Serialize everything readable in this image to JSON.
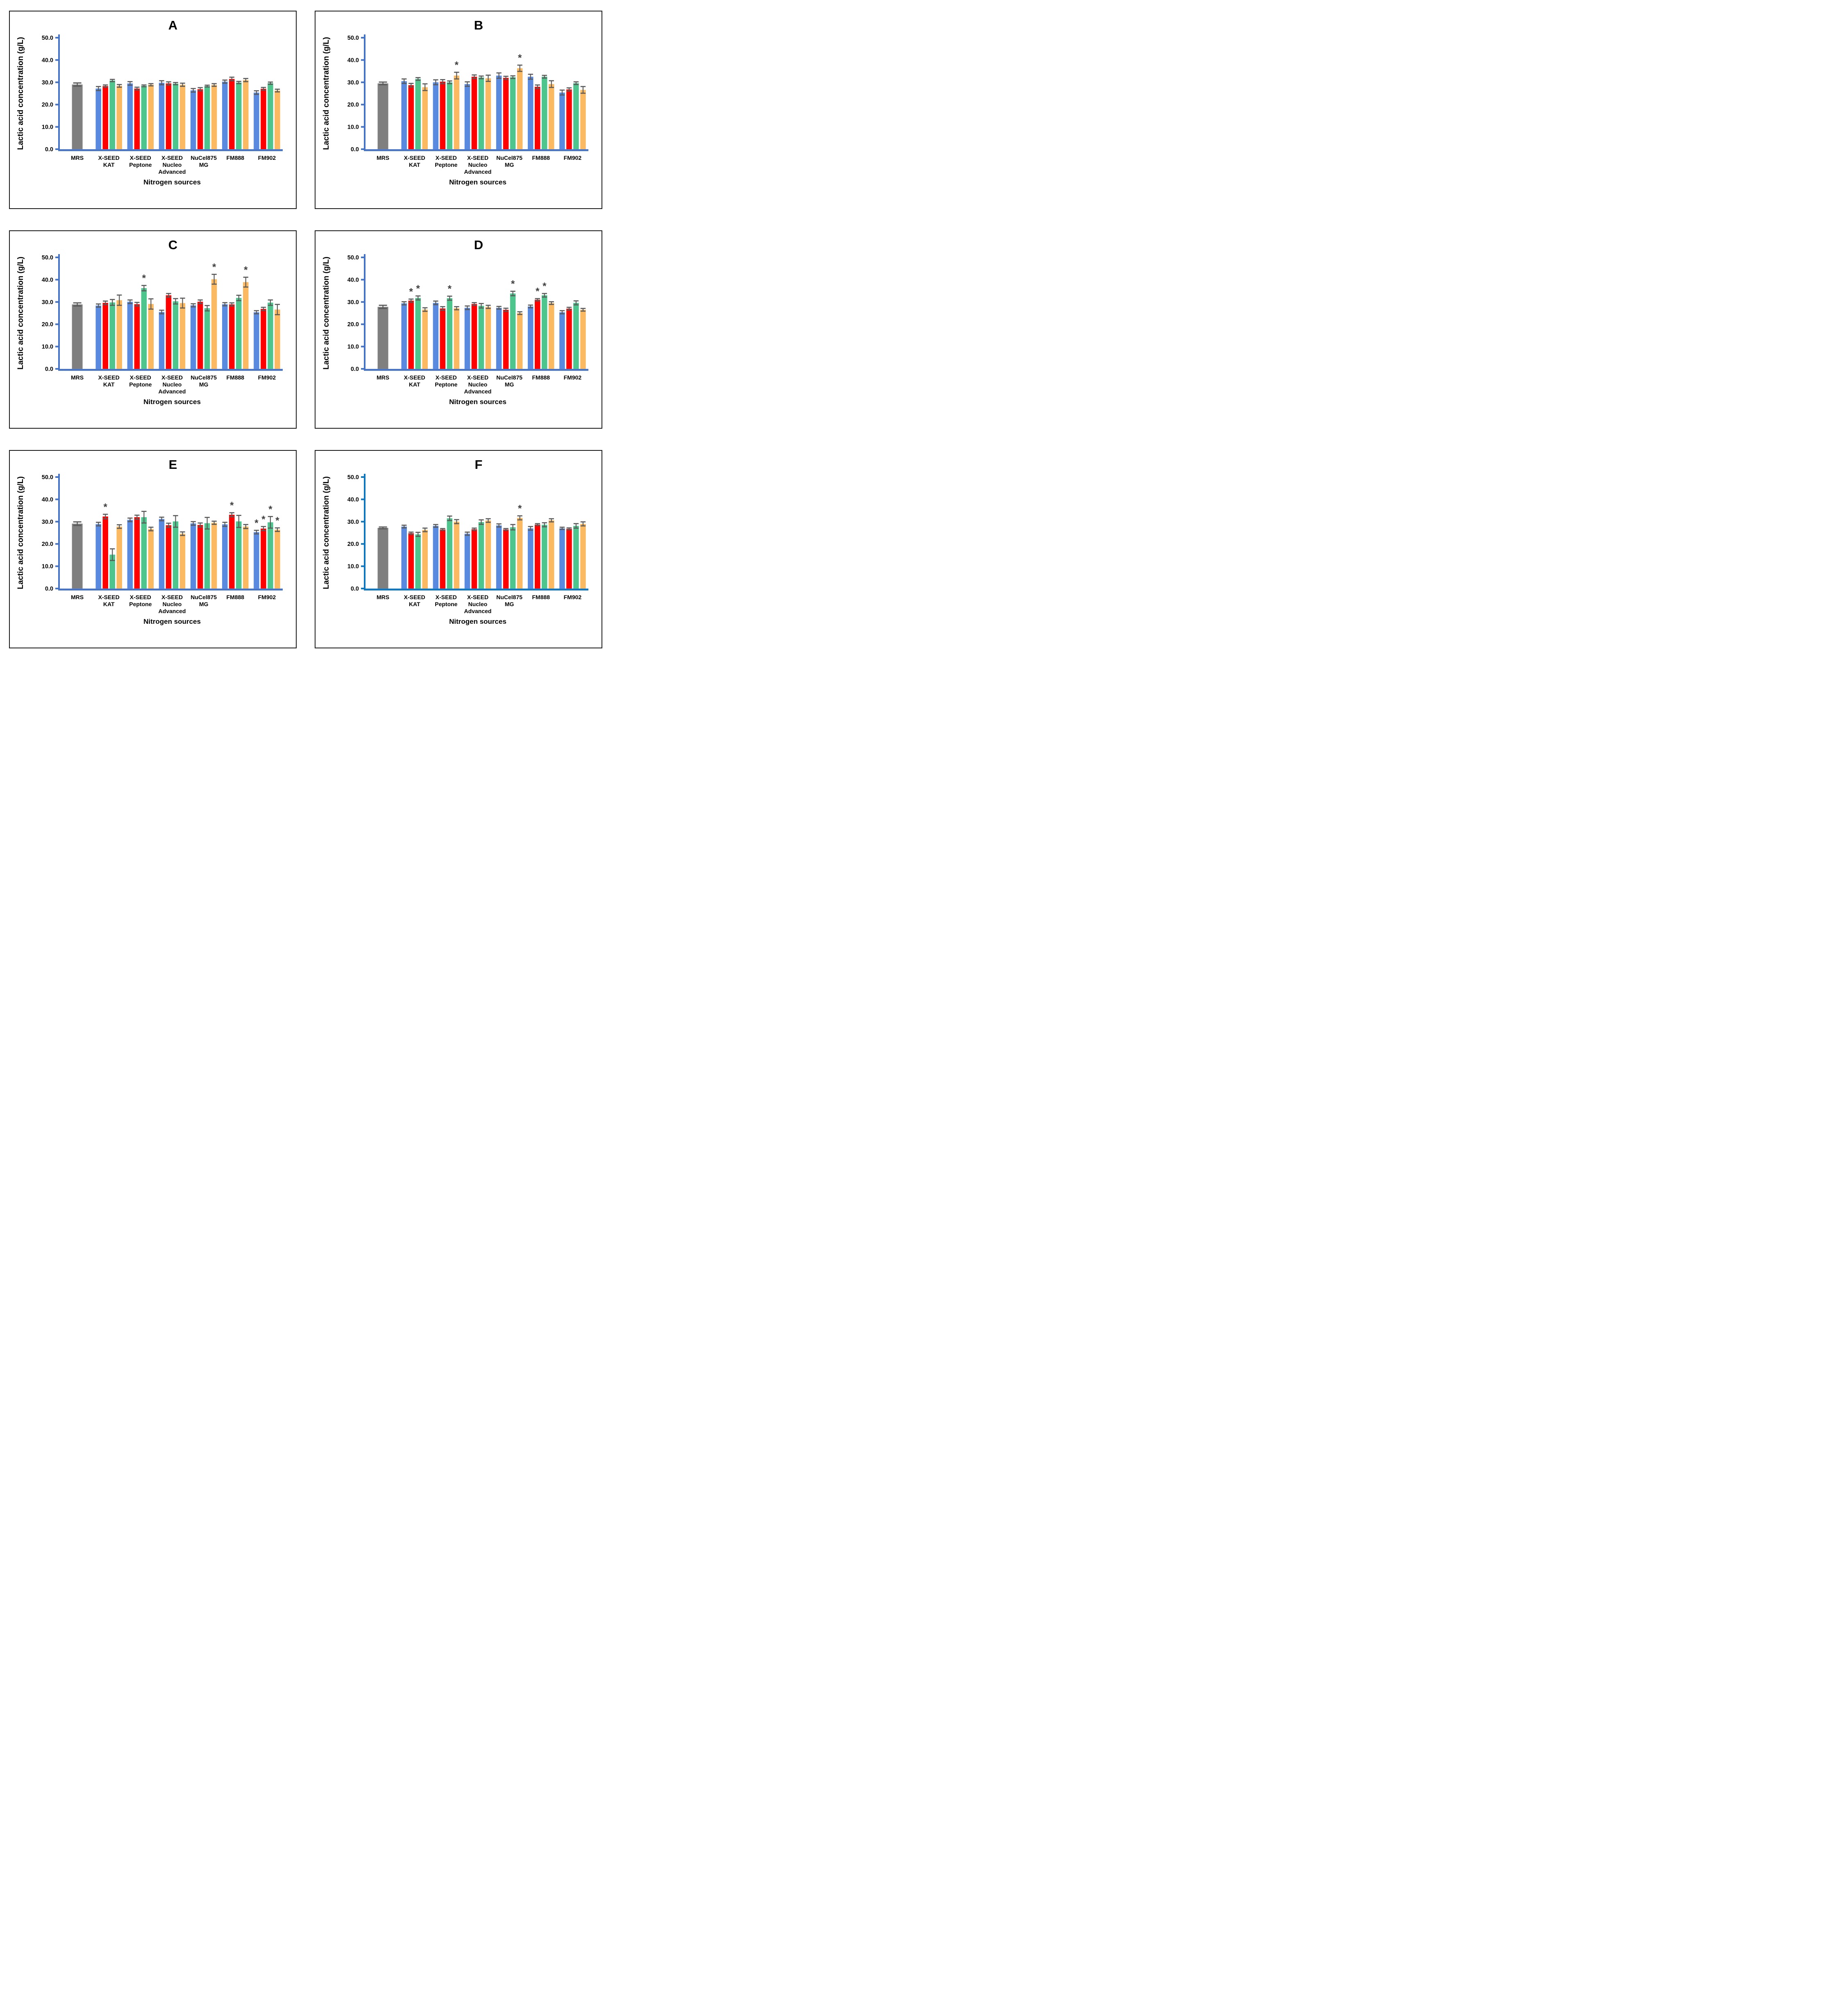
{
  "figure": {
    "ylabel": "Lactic acid concentration  (g/L)",
    "xlabel": "Nitrogen sources",
    "ylim": [
      0,
      50
    ],
    "yticks": [
      0,
      10,
      20,
      30,
      40,
      50
    ],
    "ytick_labels": [
      "0.0",
      "10.0",
      "20.0",
      "30.0",
      "40.0",
      "50.0"
    ],
    "categories": [
      [
        "MRS"
      ],
      [
        "X-SEED",
        "KAT"
      ],
      [
        "X-SEED",
        "Peptone"
      ],
      [
        "X-SEED",
        "Nucleo",
        "Advanced"
      ],
      [
        "NuCel875",
        "MG"
      ],
      [
        "FM888"
      ],
      [
        "FM902"
      ]
    ],
    "grid": "off",
    "legend": "none",
    "colors": {
      "control_bar": "#7F7F7F",
      "series": [
        "#5A8AE0",
        "#FF0000",
        "#4EC58C",
        "#FBB961"
      ],
      "series_names": [
        "blue-bar",
        "red-bar",
        "green-bar",
        "orange-bar"
      ],
      "error_bar": "#595959",
      "asterisk": "#404040",
      "text": "#000000"
    },
    "significance_symbol": "*"
  },
  "chart_data": [
    {
      "panel": "A",
      "type": "bar",
      "axis_color": "#4472C4",
      "mrs": {
        "value": 29.0,
        "error": 0.7
      },
      "groups": [
        {
          "category": "X-SEED KAT",
          "values": [
            27.2,
            28.3,
            30.8,
            28.4
          ],
          "errors": [
            0.9,
            0.5,
            0.5,
            0.6
          ],
          "marks": []
        },
        {
          "category": "X-SEED Peptone",
          "values": [
            29.5,
            27.2,
            28.4,
            28.9
          ],
          "errors": [
            0.8,
            0.6,
            0.4,
            0.5
          ],
          "marks": []
        },
        {
          "category": "X-SEED Nucleo Advanced",
          "values": [
            29.8,
            29.5,
            29.4,
            28.9
          ],
          "errors": [
            0.9,
            0.7,
            0.5,
            0.7
          ],
          "marks": []
        },
        {
          "category": "NuCel875 MG",
          "values": [
            26.4,
            26.9,
            28.3,
            28.8
          ],
          "errors": [
            0.8,
            0.7,
            0.4,
            0.6
          ],
          "marks": []
        },
        {
          "category": "FM888",
          "values": [
            30.3,
            31.5,
            29.9,
            31.0
          ],
          "errors": [
            0.7,
            0.8,
            0.5,
            0.7
          ],
          "marks": []
        },
        {
          "category": "FM902",
          "values": [
            25.4,
            27.1,
            29.6,
            26.3
          ],
          "errors": [
            0.8,
            0.6,
            0.5,
            0.6
          ],
          "marks": []
        }
      ]
    },
    {
      "panel": "B",
      "type": "bar",
      "axis_color": "#4472C4",
      "mrs": {
        "value": 29.5,
        "error": 0.6
      },
      "groups": [
        {
          "category": "X-SEED KAT",
          "values": [
            30.5,
            28.7,
            31.5,
            27.8
          ],
          "errors": [
            1.0,
            0.8,
            0.6,
            1.5
          ],
          "marks": []
        },
        {
          "category": "X-SEED Peptone",
          "values": [
            30.0,
            30.3,
            30.0,
            33.0
          ],
          "errors": [
            1.1,
            0.9,
            0.6,
            1.5
          ],
          "marks": [
            3
          ]
        },
        {
          "category": "X-SEED Nucleo Advanced",
          "values": [
            29.2,
            32.5,
            32.2,
            31.8
          ],
          "errors": [
            1.0,
            0.8,
            0.6,
            1.4
          ],
          "marks": []
        },
        {
          "category": "NuCel875 MG",
          "values": [
            33.0,
            32.0,
            32.3,
            36.3
          ],
          "errors": [
            1.2,
            0.7,
            0.6,
            1.4
          ],
          "marks": [
            3
          ]
        },
        {
          "category": "FM888",
          "values": [
            32.5,
            28.0,
            32.5,
            29.2
          ],
          "errors": [
            1.1,
            0.8,
            0.6,
            1.5
          ],
          "marks": []
        },
        {
          "category": "FM902",
          "values": [
            25.4,
            26.8,
            29.6,
            26.6
          ],
          "errors": [
            1.1,
            0.7,
            0.6,
            1.5
          ],
          "marks": []
        }
      ]
    },
    {
      "panel": "C",
      "type": "bar",
      "axis_color": "#4472C4",
      "mrs": {
        "value": 28.9,
        "error": 0.7
      },
      "groups": [
        {
          "category": "X-SEED KAT",
          "values": [
            28.4,
            29.6,
            29.8,
            30.8
          ],
          "errors": [
            0.7,
            0.8,
            1.3,
            2.3
          ],
          "marks": []
        },
        {
          "category": "X-SEED Peptone",
          "values": [
            30.1,
            29.0,
            36.2,
            29.1
          ],
          "errors": [
            0.8,
            0.8,
            1.2,
            2.3
          ],
          "marks": [
            2
          ]
        },
        {
          "category": "X-SEED Nucleo Advanced",
          "values": [
            25.5,
            33.0,
            30.3,
            29.5
          ],
          "errors": [
            0.8,
            0.8,
            1.2,
            2.2
          ],
          "marks": []
        },
        {
          "category": "NuCel875 MG",
          "values": [
            28.5,
            30.1,
            27.2,
            40.2
          ],
          "errors": [
            0.7,
            0.8,
            1.2,
            2.2
          ],
          "marks": [
            3
          ]
        },
        {
          "category": "FM888",
          "values": [
            29.0,
            28.9,
            31.8,
            38.9
          ],
          "errors": [
            0.7,
            0.7,
            1.2,
            2.2
          ],
          "marks": [
            3
          ]
        },
        {
          "category": "FM902",
          "values": [
            25.4,
            26.9,
            29.7,
            26.6
          ],
          "errors": [
            0.7,
            0.7,
            1.2,
            2.3
          ],
          "marks": []
        }
      ]
    },
    {
      "panel": "D",
      "type": "bar",
      "axis_color": "#4472C4",
      "mrs": {
        "value": 27.8,
        "error": 0.7
      },
      "groups": [
        {
          "category": "X-SEED KAT",
          "values": [
            29.4,
            30.6,
            31.8,
            26.6
          ],
          "errors": [
            0.7,
            0.7,
            0.9,
            0.8
          ],
          "marks": [
            1,
            2
          ]
        },
        {
          "category": "X-SEED Peptone",
          "values": [
            29.6,
            27.1,
            31.7,
            27.2
          ],
          "errors": [
            0.8,
            0.8,
            0.9,
            0.7
          ],
          "marks": [
            2
          ]
        },
        {
          "category": "X-SEED Nucleo Advanced",
          "values": [
            27.4,
            29.1,
            28.3,
            27.8
          ],
          "errors": [
            0.8,
            0.6,
            1.0,
            0.7
          ],
          "marks": []
        },
        {
          "category": "NuCel875 MG",
          "values": [
            27.4,
            26.5,
            33.8,
            25.0
          ],
          "errors": [
            0.6,
            0.7,
            1.0,
            0.6
          ],
          "marks": [
            2
          ]
        },
        {
          "category": "FM888",
          "values": [
            28.0,
            31.0,
            33.0,
            29.5
          ],
          "errors": [
            0.6,
            0.5,
            0.8,
            0.6
          ],
          "marks": [
            1,
            2
          ]
        },
        {
          "category": "FM902",
          "values": [
            25.4,
            27.0,
            29.6,
            26.5
          ],
          "errors": [
            0.7,
            0.6,
            0.9,
            0.6
          ],
          "marks": []
        }
      ]
    },
    {
      "panel": "E",
      "type": "bar",
      "axis_color": "#4472C4",
      "mrs": {
        "value": 29.1,
        "error": 0.8
      },
      "groups": [
        {
          "category": "X-SEED KAT",
          "values": [
            28.9,
            32.3,
            15.2,
            27.8
          ],
          "errors": [
            0.8,
            1.0,
            2.6,
            0.8
          ],
          "marks": [
            1
          ]
        },
        {
          "category": "X-SEED Peptone",
          "values": [
            30.8,
            32.0,
            32.0,
            26.7
          ],
          "errors": [
            0.8,
            0.9,
            2.6,
            0.8
          ],
          "marks": []
        },
        {
          "category": "X-SEED Nucleo Advanced",
          "values": [
            31.2,
            28.4,
            30.1,
            24.6
          ],
          "errors": [
            0.8,
            0.9,
            2.6,
            0.8
          ],
          "marks": []
        },
        {
          "category": "NuCel875 MG",
          "values": [
            29.2,
            28.5,
            29.3,
            29.5
          ],
          "errors": [
            0.8,
            0.9,
            2.6,
            0.7
          ],
          "marks": []
        },
        {
          "category": "FM888",
          "values": [
            28.8,
            33.1,
            30.1,
            27.8
          ],
          "errors": [
            0.9,
            0.9,
            2.7,
            0.9
          ],
          "marks": [
            1
          ]
        },
        {
          "category": "FM902",
          "values": [
            25.3,
            26.9,
            29.7,
            26.4
          ],
          "errors": [
            0.8,
            0.9,
            2.6,
            0.8
          ],
          "marks": [
            0,
            1,
            2,
            3
          ]
        }
      ]
    },
    {
      "panel": "F",
      "type": "bar",
      "axis_color": "#0E76BE",
      "mrs": {
        "value": 27.2,
        "error": 0.4
      },
      "groups": [
        {
          "category": "X-SEED KAT",
          "values": [
            27.8,
            24.8,
            24.3,
            26.3
          ],
          "errors": [
            0.6,
            0.5,
            0.9,
            0.8
          ],
          "marks": []
        },
        {
          "category": "X-SEED Peptone",
          "values": [
            28.1,
            26.5,
            31.5,
            30.0
          ],
          "errors": [
            0.6,
            0.4,
            1.0,
            0.9
          ],
          "marks": []
        },
        {
          "category": "X-SEED Nucleo Advanced",
          "values": [
            24.6,
            26.6,
            29.8,
            30.5
          ],
          "errors": [
            0.7,
            0.5,
            1.0,
            0.8
          ],
          "marks": []
        },
        {
          "category": "NuCel875 MG",
          "values": [
            28.3,
            26.5,
            27.5,
            31.7
          ],
          "errors": [
            0.7,
            0.4,
            1.2,
            0.9
          ],
          "marks": [
            3
          ]
        },
        {
          "category": "FM888",
          "values": [
            27.0,
            28.7,
            28.6,
            30.6
          ],
          "errors": [
            0.8,
            0.4,
            0.9,
            0.7
          ],
          "marks": []
        },
        {
          "category": "FM902",
          "values": [
            27.0,
            26.8,
            28.1,
            29.0
          ],
          "errors": [
            0.5,
            0.4,
            1.0,
            0.9
          ],
          "marks": []
        }
      ]
    }
  ]
}
